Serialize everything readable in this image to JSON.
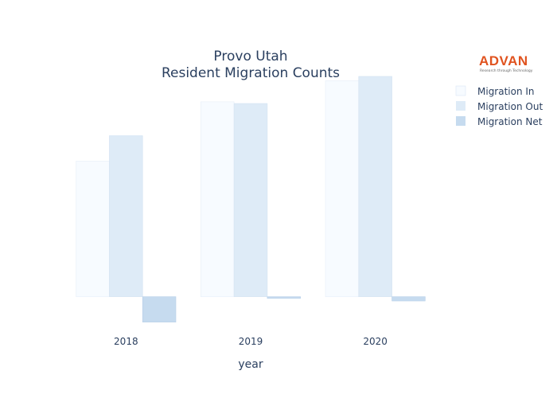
{
  "chart_data": {
    "type": "bar",
    "title_lines": [
      "Provo Utah",
      "Resident Migration Counts"
    ],
    "xlabel": "year",
    "ylabel": "",
    "categories": [
      "2018",
      "2019",
      "2020"
    ],
    "series": [
      {
        "name": "Migration In",
        "values": [
          16000,
          23000,
          25500
        ],
        "color": "#f7fbff"
      },
      {
        "name": "Migration Out",
        "values": [
          19000,
          22800,
          26000
        ],
        "color": "#deebf7"
      },
      {
        "name": "Migration Net",
        "values": [
          -3000,
          -200,
          -500
        ],
        "color": "#c6dbef"
      }
    ],
    "ylim": [
      -3500,
      27500
    ],
    "grid": false,
    "y_ticks_visible": false,
    "legend_position": "top-right"
  },
  "logo": {
    "text": "ADVAN",
    "tagline": "Research through Technology",
    "color": "#e0531f"
  }
}
